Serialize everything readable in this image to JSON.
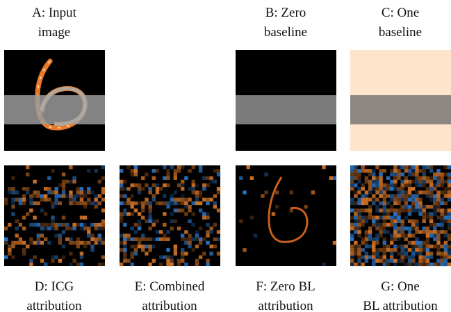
{
  "panels_top": [
    {
      "line1": "A: Input",
      "line2": "image"
    },
    {
      "line1": "B: Zero",
      "line2": "baseline"
    },
    {
      "line1": "C: One",
      "line2": "baseline"
    }
  ],
  "panels_bottom": [
    {
      "line1": "D: ICG",
      "line2": "attribution"
    },
    {
      "line1": "E: Combined",
      "line2": "attribution"
    },
    {
      "line1": "F: Zero BL",
      "line2": "attribution"
    },
    {
      "line1": "G: One",
      "line2": "BL attribution"
    }
  ]
}
